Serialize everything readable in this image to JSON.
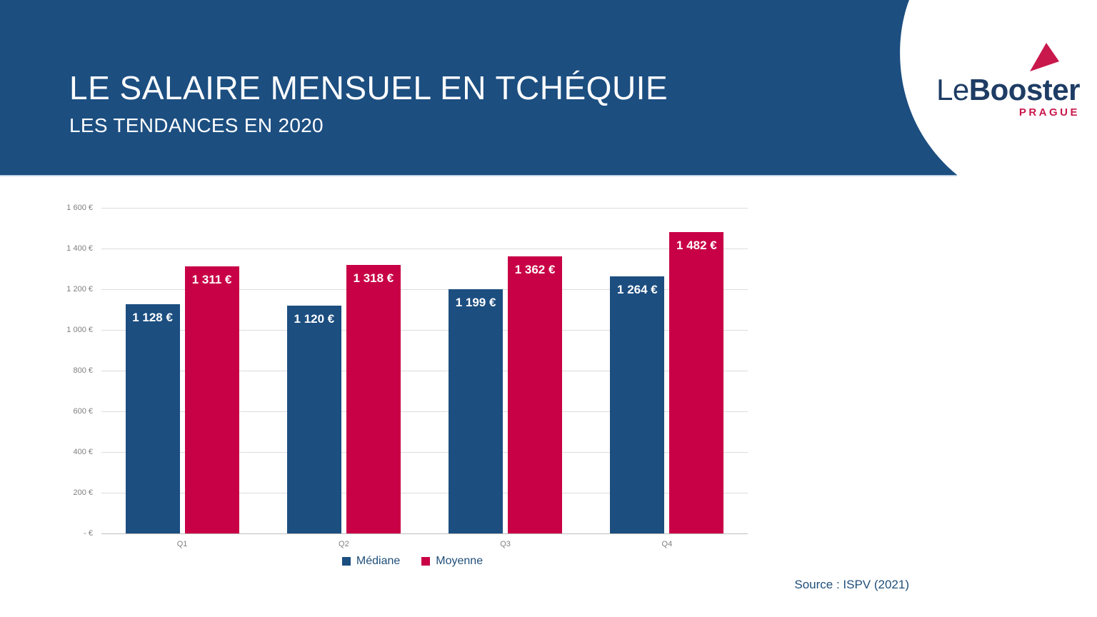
{
  "header": {
    "title": "LE SALAIRE MENSUEL EN TCHÉQUIE",
    "subtitle": "LES TENDANCES EN 2020",
    "background_color": "#1C4E80"
  },
  "logo": {
    "name_part1": "Le",
    "name_part2": "Booster",
    "city": "PRAGUE",
    "navy_color": "#1E3C64",
    "red_color": "#C8184C"
  },
  "source_note": "Source : ISPV (2021)",
  "chart_data": {
    "type": "bar",
    "title": "",
    "categories": [
      "Q1",
      "Q2",
      "Q3",
      "Q4"
    ],
    "series": [
      {
        "name": "Médiane",
        "color": "#1C4E80",
        "values": [
          1128,
          1120,
          1199,
          1264
        ],
        "labels": [
          "1 128 €",
          "1 120 €",
          "1 199 €",
          "1 264 €"
        ]
      },
      {
        "name": "Moyenne",
        "color": "#C80045",
        "values": [
          1311,
          1318,
          1362,
          1482
        ],
        "labels": [
          "1 311 €",
          "1 318 €",
          "1 362 €",
          "1 482 €"
        ]
      }
    ],
    "y_axis": {
      "min": 0,
      "max": 1600,
      "tick_step": 200,
      "ticks": [
        {
          "value": 1600,
          "label": "1 600 €"
        },
        {
          "value": 1400,
          "label": "1 400 €"
        },
        {
          "value": 1200,
          "label": "1 200 €"
        },
        {
          "value": 1000,
          "label": "1 000 €"
        },
        {
          "value": 800,
          "label": "800 €"
        },
        {
          "value": 600,
          "label": "600 €"
        },
        {
          "value": 400,
          "label": "400 €"
        },
        {
          "value": 200,
          "label": "200 €"
        },
        {
          "value": 0,
          "label": "- €"
        }
      ]
    },
    "grid": true,
    "legend_position": "bottom",
    "value_labels": "inside-top"
  }
}
